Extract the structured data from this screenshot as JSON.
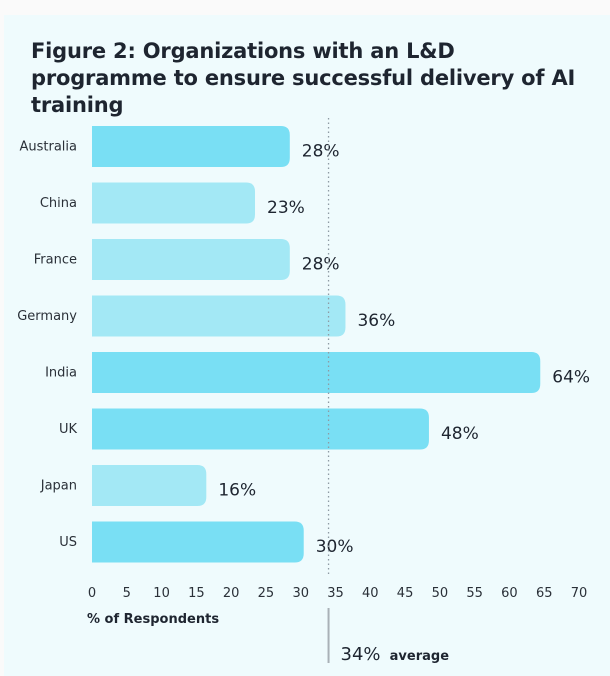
{
  "chart_data": {
    "type": "bar",
    "orientation": "horizontal",
    "title": "Figure 2: Organizations with an L&D programme to ensure successful delivery of AI training",
    "categories": [
      "Australia",
      "China",
      "France",
      "Germany",
      "India",
      "UK",
      "Japan",
      "US"
    ],
    "values": [
      28,
      23,
      28,
      36,
      64,
      48,
      16,
      30
    ],
    "value_labels": [
      "28%",
      "23%",
      "28%",
      "36%",
      "64%",
      "48%",
      "16%",
      "30%"
    ],
    "highlight": [
      true,
      false,
      false,
      false,
      true,
      true,
      false,
      true
    ],
    "colors": {
      "highlight": "#79dff4",
      "normal": "#a3e8f5"
    },
    "xlabel": "% of Respondents",
    "ylabel": "",
    "xlim": [
      0,
      70
    ],
    "xticks": [
      0,
      5,
      10,
      15,
      20,
      25,
      30,
      35,
      40,
      45,
      50,
      55,
      60,
      65,
      70
    ],
    "grid": false,
    "reference_line": {
      "value": 34,
      "label_value": "34%",
      "label_text": "average"
    }
  }
}
